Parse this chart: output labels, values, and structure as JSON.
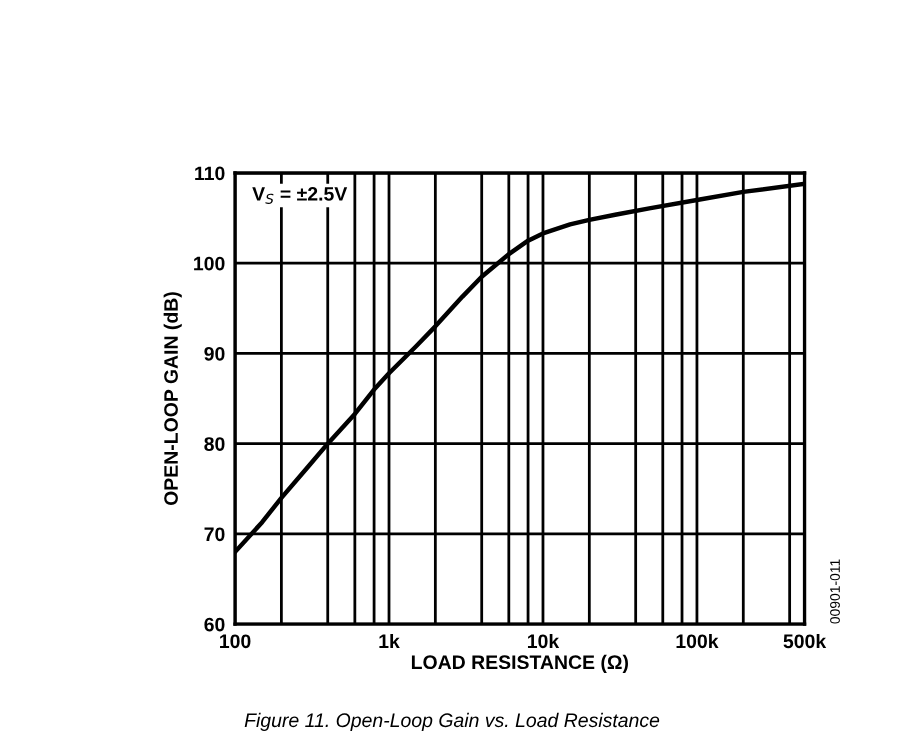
{
  "chart_data": {
    "type": "line",
    "xlabel": "LOAD RESISTANCE (Ω)",
    "ylabel": "OPEN-LOOP GAIN (dB)",
    "annotations": [
      "V$_{S}$ = ±2.5V",
      "Figure 11. Open-Loop Gain vs. Load Resistance",
      "00901-011"
    ],
    "x": [
      100,
      150,
      200,
      300,
      400,
      600,
      800,
      1000,
      1500,
      2000,
      3000,
      4000,
      6000,
      8000,
      10000,
      15000,
      20000,
      30000,
      50000,
      100000,
      200000,
      500000
    ],
    "series": [
      {
        "color": "#000000",
        "values": [
          68,
          71.3,
          74,
          77.5,
          80,
          83.3,
          86,
          87.8,
          90.8,
          93,
          96.3,
          98.5,
          101,
          102.5,
          103.3,
          104.3,
          104.8,
          105.4,
          106.1,
          107,
          107.9,
          108.8
        ]
      }
    ],
    "log": "x",
    "xlim": [
      100,
      500000
    ],
    "ylim": [
      60,
      110
    ],
    "xticks": [
      {
        "value": 100,
        "label": "100"
      },
      {
        "value": 200,
        "label": null
      },
      {
        "value": 400,
        "label": null
      },
      {
        "value": 600,
        "label": null
      },
      {
        "value": 800,
        "label": null
      },
      {
        "value": 1000,
        "label": "1k"
      },
      {
        "value": 2000,
        "label": null
      },
      {
        "value": 4000,
        "label": null
      },
      {
        "value": 6000,
        "label": null
      },
      {
        "value": 8000,
        "label": null
      },
      {
        "value": 10000,
        "label": "10k"
      },
      {
        "value": 20000,
        "label": null
      },
      {
        "value": 40000,
        "label": null
      },
      {
        "value": 60000,
        "label": null
      },
      {
        "value": 80000,
        "label": null
      },
      {
        "value": 100000,
        "label": "100k"
      },
      {
        "value": 200000,
        "label": null
      },
      {
        "value": 400000,
        "label": null
      },
      {
        "value": 500000,
        "label": "500k"
      }
    ],
    "yticks": [
      60,
      70,
      80,
      90,
      100,
      110
    ],
    "grid": true,
    "legend": false,
    "marker": "none",
    "line_style": "solid"
  }
}
